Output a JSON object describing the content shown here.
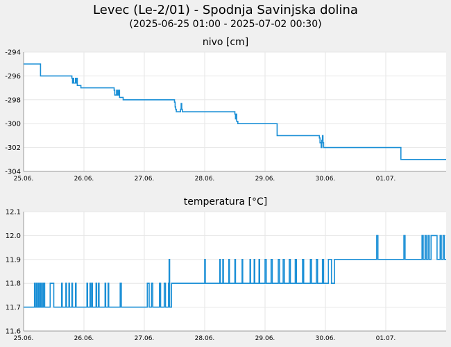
{
  "header": {
    "title": "Levec (Le-2/01) - Spodnja Savinjska dolina",
    "subtitle": "(2025-06-25 01:00 - 2025-07-02 00:30)"
  },
  "colors": {
    "line": "#1a8fd6",
    "grid": "#e6e6e6",
    "plot_bg": "#ffffff",
    "page_bg": "#f0f0f0"
  },
  "chart_data": [
    {
      "type": "line",
      "title": "nivo [cm]",
      "x_tick_labels": [
        "25.06.",
        "26.06.",
        "27.06.",
        "28.06.",
        "29.06.",
        "30.06.",
        "01.07."
      ],
      "x_tick_days": [
        0,
        1,
        2,
        3,
        4,
        5,
        6
      ],
      "xlim_days": [
        0,
        7
      ],
      "ylim": [
        -304,
        -294
      ],
      "y_ticks": [
        -294,
        -296,
        -298,
        -300,
        -302,
        -304
      ],
      "grid": true,
      "series": [
        {
          "steps": [
            [
              0.0,
              -295.0
            ],
            [
              0.28,
              -296.0
            ],
            [
              0.8,
              -296.2
            ],
            [
              0.81,
              -296.6
            ],
            [
              0.82,
              -296.2
            ],
            [
              0.83,
              -296.6
            ],
            [
              0.85,
              -296.6
            ],
            [
              0.86,
              -296.2
            ],
            [
              0.87,
              -296.6
            ],
            [
              0.88,
              -296.2
            ],
            [
              0.89,
              -296.8
            ],
            [
              0.95,
              -297.0
            ],
            [
              1.5,
              -297.2
            ],
            [
              1.51,
              -297.6
            ],
            [
              1.53,
              -297.6
            ],
            [
              1.54,
              -297.2
            ],
            [
              1.55,
              -297.6
            ],
            [
              1.56,
              -297.2
            ],
            [
              1.57,
              -297.6
            ],
            [
              1.58,
              -297.2
            ],
            [
              1.59,
              -297.8
            ],
            [
              1.65,
              -298.0
            ],
            [
              2.5,
              -298.2
            ],
            [
              2.51,
              -298.6
            ],
            [
              2.52,
              -298.8
            ],
            [
              2.53,
              -299.0
            ],
            [
              2.6,
              -298.8
            ],
            [
              2.61,
              -298.3
            ],
            [
              2.62,
              -298.8
            ],
            [
              2.63,
              -299.0
            ],
            [
              2.68,
              -299.0
            ],
            [
              3.5,
              -299.2
            ],
            [
              3.51,
              -299.6
            ],
            [
              3.52,
              -299.2
            ],
            [
              3.53,
              -299.8
            ],
            [
              3.55,
              -300.0
            ],
            [
              4.2,
              -301.0
            ],
            [
              4.9,
              -301.2
            ],
            [
              4.91,
              -301.6
            ],
            [
              4.93,
              -302.0
            ],
            [
              4.94,
              -301.4
            ],
            [
              4.95,
              -301.0
            ],
            [
              4.96,
              -301.6
            ],
            [
              4.97,
              -302.0
            ],
            [
              6.25,
              -303.0
            ],
            [
              7.0,
              -303.0
            ]
          ]
        }
      ]
    },
    {
      "type": "line",
      "title": "temperatura [°C]",
      "x_tick_labels": [
        "25.06.",
        "26.06.",
        "27.06.",
        "28.06.",
        "29.06.",
        "30.06.",
        "01.07."
      ],
      "x_tick_days": [
        0,
        1,
        2,
        3,
        4,
        5,
        6
      ],
      "xlim_days": [
        0,
        7
      ],
      "ylim": [
        11.6,
        12.1
      ],
      "y_ticks": [
        12.1,
        12.0,
        11.9,
        11.8,
        11.7,
        11.6
      ],
      "grid": true,
      "series": [
        {
          "steps": [
            [
              0.0,
              11.7
            ],
            [
              0.18,
              11.8
            ],
            [
              0.19,
              11.7
            ],
            [
              0.21,
              11.8
            ],
            [
              0.22,
              11.7
            ],
            [
              0.24,
              11.8
            ],
            [
              0.25,
              11.7
            ],
            [
              0.27,
              11.8
            ],
            [
              0.28,
              11.7
            ],
            [
              0.3,
              11.8
            ],
            [
              0.31,
              11.7
            ],
            [
              0.33,
              11.8
            ],
            [
              0.35,
              11.7
            ],
            [
              0.44,
              11.8
            ],
            [
              0.5,
              11.7
            ],
            [
              0.63,
              11.8
            ],
            [
              0.64,
              11.7
            ],
            [
              0.7,
              11.8
            ],
            [
              0.71,
              11.7
            ],
            [
              0.75,
              11.8
            ],
            [
              0.76,
              11.7
            ],
            [
              0.8,
              11.8
            ],
            [
              0.81,
              11.7
            ],
            [
              0.86,
              11.8
            ],
            [
              0.87,
              11.7
            ],
            [
              1.05,
              11.8
            ],
            [
              1.06,
              11.7
            ],
            [
              1.1,
              11.8
            ],
            [
              1.11,
              11.7
            ],
            [
              1.13,
              11.8
            ],
            [
              1.14,
              11.7
            ],
            [
              1.2,
              11.8
            ],
            [
              1.21,
              11.7
            ],
            [
              1.24,
              11.8
            ],
            [
              1.25,
              11.7
            ],
            [
              1.35,
              11.8
            ],
            [
              1.36,
              11.7
            ],
            [
              1.4,
              11.8
            ],
            [
              1.41,
              11.7
            ],
            [
              1.6,
              11.8
            ],
            [
              1.62,
              11.7
            ],
            [
              2.05,
              11.8
            ],
            [
              2.08,
              11.7
            ],
            [
              2.12,
              11.8
            ],
            [
              2.14,
              11.7
            ],
            [
              2.25,
              11.8
            ],
            [
              2.27,
              11.7
            ],
            [
              2.33,
              11.8
            ],
            [
              2.35,
              11.7
            ],
            [
              2.4,
              11.8
            ],
            [
              2.41,
              11.9
            ],
            [
              2.42,
              11.7
            ],
            [
              2.45,
              11.8
            ],
            [
              3.0,
              11.9
            ],
            [
              3.01,
              11.8
            ],
            [
              3.25,
              11.9
            ],
            [
              3.26,
              11.8
            ],
            [
              3.3,
              11.9
            ],
            [
              3.31,
              11.8
            ],
            [
              3.4,
              11.9
            ],
            [
              3.41,
              11.8
            ],
            [
              3.5,
              11.9
            ],
            [
              3.51,
              11.8
            ],
            [
              3.62,
              11.9
            ],
            [
              3.63,
              11.8
            ],
            [
              3.75,
              11.9
            ],
            [
              3.76,
              11.8
            ],
            [
              3.82,
              11.9
            ],
            [
              3.83,
              11.8
            ],
            [
              3.9,
              11.9
            ],
            [
              3.91,
              11.8
            ],
            [
              4.0,
              11.9
            ],
            [
              4.02,
              11.8
            ],
            [
              4.1,
              11.9
            ],
            [
              4.12,
              11.8
            ],
            [
              4.22,
              11.9
            ],
            [
              4.24,
              11.8
            ],
            [
              4.3,
              11.9
            ],
            [
              4.32,
              11.8
            ],
            [
              4.4,
              11.9
            ],
            [
              4.42,
              11.8
            ],
            [
              4.5,
              11.9
            ],
            [
              4.52,
              11.8
            ],
            [
              4.62,
              11.9
            ],
            [
              4.64,
              11.8
            ],
            [
              4.75,
              11.9
            ],
            [
              4.77,
              11.8
            ],
            [
              4.85,
              11.9
            ],
            [
              4.87,
              11.8
            ],
            [
              4.95,
              11.9
            ],
            [
              4.97,
              11.8
            ],
            [
              5.05,
              11.9
            ],
            [
              5.1,
              11.8
            ],
            [
              5.15,
              11.9
            ],
            [
              5.85,
              12.0
            ],
            [
              5.87,
              11.9
            ],
            [
              6.3,
              12.0
            ],
            [
              6.32,
              11.9
            ],
            [
              6.6,
              12.0
            ],
            [
              6.62,
              11.9
            ],
            [
              6.65,
              12.0
            ],
            [
              6.67,
              11.9
            ],
            [
              6.7,
              12.0
            ],
            [
              6.72,
              11.9
            ],
            [
              6.75,
              12.0
            ],
            [
              6.85,
              11.9
            ],
            [
              6.9,
              12.0
            ],
            [
              6.92,
              11.9
            ],
            [
              6.95,
              12.0
            ],
            [
              6.97,
              11.9
            ],
            [
              7.0,
              11.9
            ]
          ]
        }
      ]
    }
  ]
}
